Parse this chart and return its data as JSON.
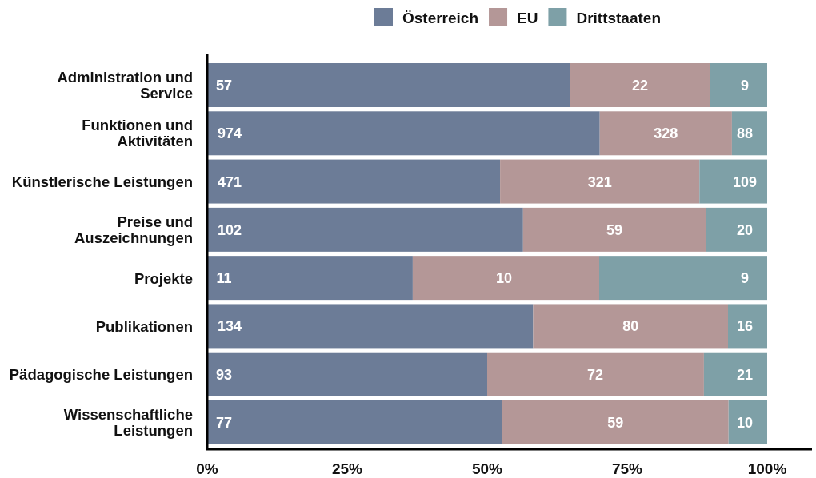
{
  "chart_data": {
    "type": "bar",
    "orientation": "horizontal",
    "stacked": true,
    "categories": [
      "Administration und Service",
      "Funktionen und Aktivitäten",
      "Künstlerische Leistungen",
      "Preise und Auszeichnungen",
      "Projekte",
      "Publikationen",
      "Pädagogische Leistungen",
      "Wissenschaftliche Leistungen"
    ],
    "series": [
      {
        "name": "Österreich",
        "color": "#6c7c97",
        "values": [
          64.8,
          70.1,
          52.3,
          56.4,
          36.7,
          58.2,
          50.0,
          52.7
        ]
      },
      {
        "name": "EU",
        "color": "#b49797",
        "values": [
          25.0,
          23.6,
          35.6,
          32.6,
          33.3,
          34.8,
          38.7,
          40.4
        ]
      },
      {
        "name": "Drittstaaten",
        "color": "#7ea0a7",
        "values": [
          10.2,
          6.3,
          12.1,
          11.0,
          30.0,
          7.0,
          11.3,
          6.9
        ]
      }
    ],
    "xlim": [
      0,
      108
    ],
    "xticks": [
      {
        "value": 0,
        "label": "0%"
      },
      {
        "value": 25,
        "label": "25%"
      },
      {
        "value": 50,
        "label": "50%"
      },
      {
        "value": 75,
        "label": "75%"
      },
      {
        "value": 100,
        "label": "100%"
      }
    ],
    "legend": "top",
    "annotations": [
      {
        "text": "57",
        "x": 3,
        "y": "Administration und Service"
      },
      {
        "text": "22",
        "x": 77.3,
        "y": "Administration und Service"
      },
      {
        "text": "9",
        "x": 96,
        "y": "Administration und Service"
      },
      {
        "text": "974",
        "x": 4,
        "y": "Funktionen und Aktivitäten"
      },
      {
        "text": "328",
        "x": 81.9,
        "y": "Funktionen und Aktivitäten"
      },
      {
        "text": "88",
        "x": 96,
        "y": "Funktionen und Aktivitäten"
      },
      {
        "text": "471",
        "x": 4,
        "y": "Künstlerische Leistungen"
      },
      {
        "text": "321",
        "x": 70.1,
        "y": "Künstlerische Leistungen"
      },
      {
        "text": "109",
        "x": 96,
        "y": "Künstlerische Leistungen"
      },
      {
        "text": "102",
        "x": 4,
        "y": "Preise und Auszeichnungen"
      },
      {
        "text": "59",
        "x": 72.7,
        "y": "Preise und Auszeichnungen"
      },
      {
        "text": "20",
        "x": 96,
        "y": "Preise und Auszeichnungen"
      },
      {
        "text": "11",
        "x": 3,
        "y": "Projekte"
      },
      {
        "text": "10",
        "x": 53,
        "y": "Projekte"
      },
      {
        "text": "9",
        "x": 96,
        "y": "Projekte"
      },
      {
        "text": "134",
        "x": 4,
        "y": "Publikationen"
      },
      {
        "text": "80",
        "x": 75.6,
        "y": "Publikationen"
      },
      {
        "text": "16",
        "x": 96,
        "y": "Publikationen"
      },
      {
        "text": "93",
        "x": 3,
        "y": "Pädagogische Leistungen"
      },
      {
        "text": "72",
        "x": 69.3,
        "y": "Pädagogische Leistungen"
      },
      {
        "text": "21",
        "x": 96,
        "y": "Pädagogische Leistungen"
      },
      {
        "text": "77",
        "x": 3,
        "y": "Wissenschaftliche Leistungen"
      },
      {
        "text": "59",
        "x": 72.9,
        "y": "Wissenschaftliche Leistungen"
      },
      {
        "text": "10",
        "x": 96,
        "y": "Wissenschaftliche Leistungen"
      }
    ]
  }
}
